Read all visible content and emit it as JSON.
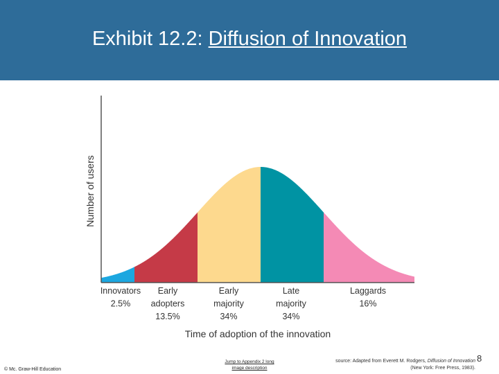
{
  "slide": {
    "title_prefix": "Exhibit 12.2: ",
    "title_link": "Diffusion of Innovation",
    "copyright": "© Mc. Graw-Hill Education",
    "jump_link_line1": "Jump to Appendix 2 long",
    "jump_link_line2": "image description",
    "source_prefix": "source: Adapted from Everett M. Rodgers, ",
    "source_italic": "Diffusion of Innovation",
    "source_line2": "(New York: Free Press, 1983).",
    "page_number": "8"
  },
  "colors": {
    "header_bg": "#2e6c99",
    "innovators": "#1ca7e0",
    "early_adopters": "#c53a47",
    "early_majority": "#fdd98e",
    "late_majority": "#0093a3",
    "laggards": "#f48ab5",
    "axis": "#555555"
  },
  "chart_data": {
    "type": "area",
    "xlabel": "Time of adoption of the innovation",
    "ylabel": "Number of users",
    "segments": [
      {
        "name": "Innovators",
        "percent_label": "2.5%",
        "value": 2.5,
        "color_key": "innovators"
      },
      {
        "name": "Early adopters",
        "percent_label": "13.5%",
        "value": 13.5,
        "color_key": "early_adopters"
      },
      {
        "name": "Early majority",
        "percent_label": "34%",
        "value": 34,
        "color_key": "early_majority"
      },
      {
        "name": "Late majority",
        "percent_label": "34%",
        "value": 34,
        "color_key": "late_majority"
      },
      {
        "name": "Laggards",
        "percent_label": "16%",
        "value": 16,
        "color_key": "laggards"
      }
    ],
    "label_lines": [
      [
        "Innovators",
        "2.5%"
      ],
      [
        "Early",
        "adopters",
        "13.5%"
      ],
      [
        "Early",
        "majority",
        "34%"
      ],
      [
        "Late",
        "majority",
        "34%"
      ],
      [
        "Laggards",
        "16%"
      ]
    ],
    "grid": false,
    "legend": "none"
  }
}
